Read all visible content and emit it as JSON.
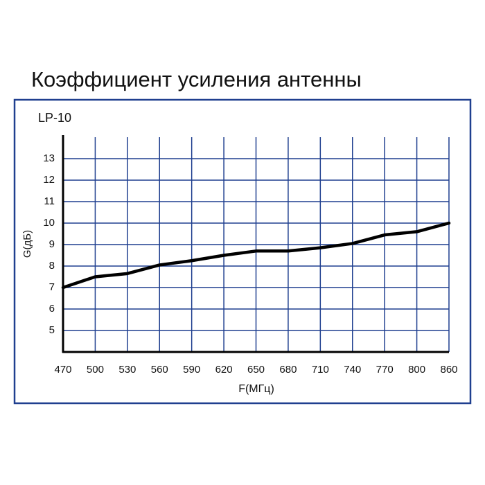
{
  "chart_data": {
    "type": "line",
    "title": "Коэффициент усиления антенны",
    "subtitle": "LP-10",
    "x_label": "F(МГц)",
    "y_label": "G(дБ)",
    "categories": [
      "470",
      "500",
      "530",
      "560",
      "590",
      "620",
      "650",
      "680",
      "710",
      "740",
      "770",
      "800",
      "860"
    ],
    "values": [
      7.0,
      7.5,
      7.65,
      8.05,
      8.25,
      8.5,
      8.7,
      8.7,
      8.85,
      9.05,
      9.45,
      9.6,
      10.0
    ],
    "color": "#000000",
    "grid_color": "#1f3f8f",
    "ylim": [
      4,
      14
    ],
    "yticks": [
      5,
      6,
      7,
      8,
      9,
      10,
      11,
      12,
      13
    ],
    "grid": true
  }
}
